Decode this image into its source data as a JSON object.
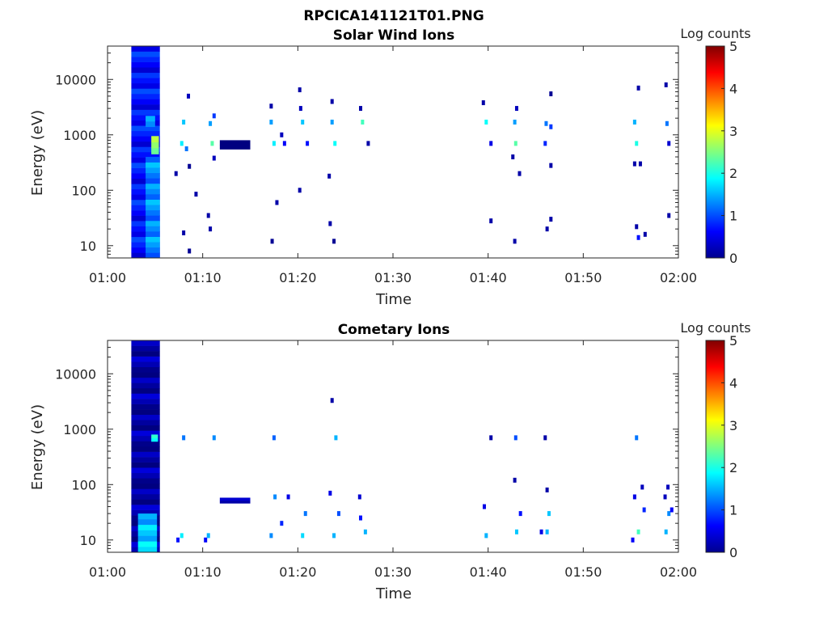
{
  "figure_title": "RPCICA141121T01.PNG",
  "chart_data": [
    {
      "type": "heatmap",
      "title": "Solar Wind Ions",
      "xlabel": "Time",
      "ylabel": "Energy (eV)",
      "x_ticks": [
        "01:00",
        "01:10",
        "01:20",
        "01:30",
        "01:40",
        "01:50",
        "02:00"
      ],
      "xlim": [
        "01:00",
        "02:00"
      ],
      "y_scale": "log",
      "y_ticks": [
        10,
        100,
        1000,
        10000
      ],
      "ylim": [
        6,
        40000
      ],
      "colorbar": {
        "label": "Log counts",
        "ticks": [
          0,
          1,
          2,
          3,
          4,
          5
        ],
        "range": [
          0,
          5
        ],
        "colormap": "jet"
      },
      "background": "#ffffff",
      "blocks": [
        {
          "t0": 2.5,
          "t1": 5.5,
          "e0": 6,
          "e1": 40000,
          "v": 0.7
        },
        {
          "t0": 4.0,
          "t1": 5.5,
          "e0": 6,
          "e1": 400,
          "v": 1.3
        },
        {
          "t0": 4.6,
          "t1": 5.4,
          "e0": 450,
          "e1": 950,
          "v": 2.7
        },
        {
          "t0": 4.0,
          "t1": 5.0,
          "e0": 1400,
          "e1": 2200,
          "v": 1.6
        },
        {
          "t0": 11.8,
          "t1": 15.0,
          "e0": 550,
          "e1": 800,
          "v": 0.1
        }
      ],
      "spots": [
        {
          "t": 7.8,
          "e": 700,
          "v": 1.8
        },
        {
          "t": 8.0,
          "e": 1700,
          "v": 1.6
        },
        {
          "t": 8.3,
          "e": 560,
          "v": 1.2
        },
        {
          "t": 8.5,
          "e": 5000,
          "v": 0.3
        },
        {
          "t": 8.0,
          "e": 17,
          "v": 0.2
        },
        {
          "t": 8.6,
          "e": 8,
          "v": 0.1
        },
        {
          "t": 7.2,
          "e": 200,
          "v": 0.2
        },
        {
          "t": 9.3,
          "e": 85,
          "v": 0.2
        },
        {
          "t": 8.6,
          "e": 270,
          "v": 0.1
        },
        {
          "t": 11.0,
          "e": 700,
          "v": 2.3
        },
        {
          "t": 10.8,
          "e": 1600,
          "v": 1.4
        },
        {
          "t": 11.2,
          "e": 2200,
          "v": 0.9
        },
        {
          "t": 10.8,
          "e": 20,
          "v": 0.2
        },
        {
          "t": 11.2,
          "e": 380,
          "v": 0.3
        },
        {
          "t": 10.6,
          "e": 35,
          "v": 0.2
        },
        {
          "t": 17.5,
          "e": 700,
          "v": 1.8
        },
        {
          "t": 17.2,
          "e": 1700,
          "v": 1.4
        },
        {
          "t": 17.3,
          "e": 12,
          "v": 0.1
        },
        {
          "t": 18.6,
          "e": 700,
          "v": 0.6
        },
        {
          "t": 17.8,
          "e": 60,
          "v": 0.2
        },
        {
          "t": 17.2,
          "e": 3300,
          "v": 0.2
        },
        {
          "t": 18.3,
          "e": 1000,
          "v": 0.3
        },
        {
          "t": 20.5,
          "e": 1700,
          "v": 1.6
        },
        {
          "t": 21.0,
          "e": 700,
          "v": 0.7
        },
        {
          "t": 20.3,
          "e": 3000,
          "v": 0.3
        },
        {
          "t": 20.2,
          "e": 100,
          "v": 0.2
        },
        {
          "t": 20.2,
          "e": 6500,
          "v": 0.2
        },
        {
          "t": 23.9,
          "e": 700,
          "v": 1.9
        },
        {
          "t": 23.6,
          "e": 1700,
          "v": 1.4
        },
        {
          "t": 23.8,
          "e": 12,
          "v": 0.1
        },
        {
          "t": 23.4,
          "e": 25,
          "v": 0.2
        },
        {
          "t": 23.6,
          "e": 4000,
          "v": 0.2
        },
        {
          "t": 23.3,
          "e": 180,
          "v": 0.2
        },
        {
          "t": 26.8,
          "e": 1700,
          "v": 2.2
        },
        {
          "t": 26.6,
          "e": 3000,
          "v": 0.2
        },
        {
          "t": 27.4,
          "e": 700,
          "v": 0.2
        },
        {
          "t": 39.8,
          "e": 1700,
          "v": 1.9
        },
        {
          "t": 39.5,
          "e": 3800,
          "v": 0.2
        },
        {
          "t": 40.3,
          "e": 700,
          "v": 0.5
        },
        {
          "t": 40.3,
          "e": 28,
          "v": 0.2
        },
        {
          "t": 42.9,
          "e": 700,
          "v": 2.3
        },
        {
          "t": 42.8,
          "e": 1700,
          "v": 1.4
        },
        {
          "t": 42.8,
          "e": 12,
          "v": 0.2
        },
        {
          "t": 43.0,
          "e": 3000,
          "v": 0.3
        },
        {
          "t": 42.6,
          "e": 400,
          "v": 0.2
        },
        {
          "t": 43.3,
          "e": 200,
          "v": 0.2
        },
        {
          "t": 46.0,
          "e": 700,
          "v": 0.8
        },
        {
          "t": 46.1,
          "e": 1600,
          "v": 1.2
        },
        {
          "t": 46.6,
          "e": 1400,
          "v": 0.9
        },
        {
          "t": 46.2,
          "e": 20,
          "v": 0.2
        },
        {
          "t": 46.6,
          "e": 30,
          "v": 0.2
        },
        {
          "t": 46.6,
          "e": 280,
          "v": 0.2
        },
        {
          "t": 46.6,
          "e": 5500,
          "v": 0.1
        },
        {
          "t": 55.6,
          "e": 700,
          "v": 2.0
        },
        {
          "t": 55.4,
          "e": 1700,
          "v": 1.5
        },
        {
          "t": 55.8,
          "e": 14,
          "v": 0.7
        },
        {
          "t": 55.6,
          "e": 22,
          "v": 0.2
        },
        {
          "t": 56.5,
          "e": 16,
          "v": 0.2
        },
        {
          "t": 55.8,
          "e": 7000,
          "v": 0.2
        },
        {
          "t": 56.0,
          "e": 300,
          "v": 0.2
        },
        {
          "t": 55.4,
          "e": 300,
          "v": 0.2
        },
        {
          "t": 58.8,
          "e": 1600,
          "v": 1.2
        },
        {
          "t": 59.0,
          "e": 700,
          "v": 0.4
        },
        {
          "t": 58.7,
          "e": 8000,
          "v": 0.2
        },
        {
          "t": 59.0,
          "e": 35,
          "v": 0.2
        }
      ]
    },
    {
      "type": "heatmap",
      "title": "Cometary Ions",
      "xlabel": "Time",
      "ylabel": "Energy (eV)",
      "x_ticks": [
        "01:00",
        "01:10",
        "01:20",
        "01:30",
        "01:40",
        "01:50",
        "02:00"
      ],
      "xlim": [
        "01:00",
        "02:00"
      ],
      "y_scale": "log",
      "y_ticks": [
        10,
        100,
        1000,
        10000
      ],
      "ylim": [
        6,
        40000
      ],
      "colorbar": {
        "label": "Log counts",
        "ticks": [
          0,
          1,
          2,
          3,
          4,
          5
        ],
        "range": [
          0,
          5
        ],
        "colormap": "jet"
      },
      "background": "#ffffff",
      "blocks": [
        {
          "t0": 2.5,
          "t1": 5.5,
          "e0": 6,
          "e1": 40000,
          "v": 0.15
        },
        {
          "t0": 3.2,
          "t1": 5.2,
          "e0": 6,
          "e1": 30,
          "v": 1.6
        },
        {
          "t0": 4.6,
          "t1": 5.3,
          "e0": 600,
          "e1": 800,
          "v": 1.8
        },
        {
          "t0": 11.8,
          "t1": 15.0,
          "e0": 46,
          "e1": 58,
          "v": 0.1
        }
      ],
      "spots": [
        {
          "t": 8.0,
          "e": 700,
          "v": 1.2
        },
        {
          "t": 7.8,
          "e": 12,
          "v": 1.8
        },
        {
          "t": 7.4,
          "e": 10,
          "v": 0.7
        },
        {
          "t": 11.2,
          "e": 700,
          "v": 1.3
        },
        {
          "t": 10.6,
          "e": 12,
          "v": 1.5
        },
        {
          "t": 10.3,
          "e": 10,
          "v": 0.6
        },
        {
          "t": 17.5,
          "e": 700,
          "v": 1.1
        },
        {
          "t": 17.2,
          "e": 12,
          "v": 1.3
        },
        {
          "t": 17.6,
          "e": 60,
          "v": 1.3
        },
        {
          "t": 18.3,
          "e": 20,
          "v": 0.8
        },
        {
          "t": 19.0,
          "e": 60,
          "v": 0.5
        },
        {
          "t": 20.5,
          "e": 12,
          "v": 1.7
        },
        {
          "t": 20.8,
          "e": 30,
          "v": 1.2
        },
        {
          "t": 24.0,
          "e": 700,
          "v": 1.5
        },
        {
          "t": 23.6,
          "e": 3300,
          "v": 0.2
        },
        {
          "t": 23.8,
          "e": 12,
          "v": 1.5
        },
        {
          "t": 23.4,
          "e": 70,
          "v": 0.5
        },
        {
          "t": 26.5,
          "e": 60,
          "v": 0.4
        },
        {
          "t": 24.3,
          "e": 30,
          "v": 1.0
        },
        {
          "t": 27.1,
          "e": 14,
          "v": 1.5
        },
        {
          "t": 26.6,
          "e": 25,
          "v": 0.7
        },
        {
          "t": 39.8,
          "e": 12,
          "v": 1.5
        },
        {
          "t": 40.3,
          "e": 700,
          "v": 0.2
        },
        {
          "t": 39.6,
          "e": 40,
          "v": 0.5
        },
        {
          "t": 42.9,
          "e": 700,
          "v": 1.0
        },
        {
          "t": 42.8,
          "e": 120,
          "v": 0.2
        },
        {
          "t": 43.0,
          "e": 14,
          "v": 1.6
        },
        {
          "t": 43.4,
          "e": 30,
          "v": 0.7
        },
        {
          "t": 46.0,
          "e": 700,
          "v": 0.2
        },
        {
          "t": 46.2,
          "e": 14,
          "v": 1.5
        },
        {
          "t": 46.4,
          "e": 30,
          "v": 1.6
        },
        {
          "t": 46.2,
          "e": 80,
          "v": 0.2
        },
        {
          "t": 45.6,
          "e": 14,
          "v": 0.5
        },
        {
          "t": 55.6,
          "e": 700,
          "v": 1.2
        },
        {
          "t": 55.8,
          "e": 14,
          "v": 2.2
        },
        {
          "t": 55.4,
          "e": 60,
          "v": 0.5
        },
        {
          "t": 56.4,
          "e": 35,
          "v": 0.8
        },
        {
          "t": 55.2,
          "e": 10,
          "v": 0.6
        },
        {
          "t": 56.2,
          "e": 90,
          "v": 0.3
        },
        {
          "t": 58.7,
          "e": 14,
          "v": 1.5
        },
        {
          "t": 59.0,
          "e": 30,
          "v": 1.3
        },
        {
          "t": 59.3,
          "e": 35,
          "v": 0.6
        },
        {
          "t": 58.6,
          "e": 60,
          "v": 0.3
        },
        {
          "t": 58.9,
          "e": 90,
          "v": 0.3
        }
      ]
    }
  ]
}
